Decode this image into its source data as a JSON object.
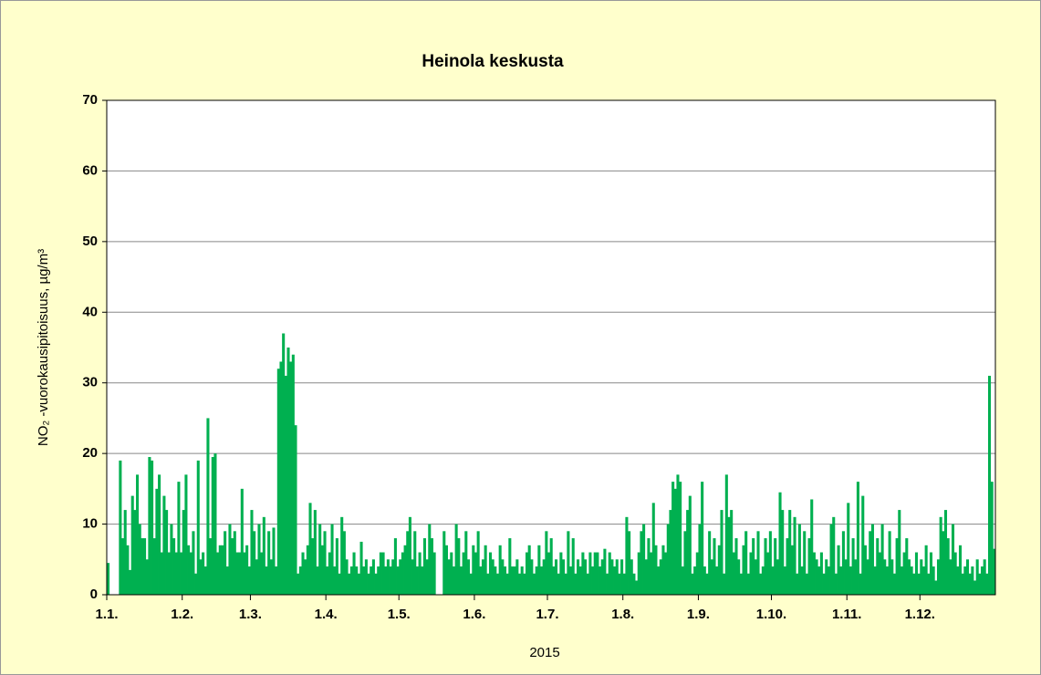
{
  "chart_data": {
    "type": "bar",
    "title": "Heinola keskusta",
    "x_label": "2015",
    "y_label": "NO₂ -vuorokausipitoisuus, µg/m³",
    "color": "#00b050",
    "grid": true,
    "ylim": [
      0,
      70
    ],
    "yticks": [
      0,
      10,
      20,
      30,
      40,
      50,
      60,
      70
    ],
    "categories": [
      "1.1.",
      null,
      null,
      null,
      null,
      null,
      null,
      null,
      null,
      null,
      null,
      null,
      null,
      null,
      null,
      null,
      null,
      null,
      null,
      null,
      null,
      null,
      null,
      null,
      null,
      null,
      null,
      null,
      null,
      null,
      null,
      "1.2.",
      null,
      null,
      null,
      null,
      null,
      null,
      null,
      null,
      null,
      null,
      null,
      null,
      null,
      null,
      null,
      null,
      null,
      null,
      null,
      null,
      null,
      null,
      null,
      null,
      null,
      null,
      null,
      "1.3.",
      null,
      null,
      null,
      null,
      null,
      null,
      null,
      null,
      null,
      null,
      null,
      null,
      null,
      null,
      null,
      null,
      null,
      null,
      null,
      null,
      null,
      null,
      null,
      null,
      null,
      null,
      null,
      null,
      null,
      null,
      "1.4.",
      null,
      null,
      null,
      null,
      null,
      null,
      null,
      null,
      null,
      null,
      null,
      null,
      null,
      null,
      null,
      null,
      null,
      null,
      null,
      null,
      null,
      null,
      null,
      null,
      null,
      null,
      null,
      null,
      null,
      "1.5.",
      null,
      null,
      null,
      null,
      null,
      null,
      null,
      null,
      null,
      null,
      null,
      null,
      null,
      null,
      null,
      null,
      null,
      null,
      null,
      null,
      null,
      null,
      null,
      null,
      null,
      null,
      null,
      null,
      null,
      null,
      "1.6.",
      null,
      null,
      null,
      null,
      null,
      null,
      null,
      null,
      null,
      null,
      null,
      null,
      null,
      null,
      null,
      null,
      null,
      null,
      null,
      null,
      null,
      null,
      null,
      null,
      null,
      null,
      null,
      null,
      null,
      "1.7.",
      null,
      null,
      null,
      null,
      null,
      null,
      null,
      null,
      null,
      null,
      null,
      null,
      null,
      null,
      null,
      null,
      null,
      null,
      null,
      null,
      null,
      null,
      null,
      null,
      null,
      null,
      null,
      null,
      null,
      null,
      "1.8.",
      null,
      null,
      null,
      null,
      null,
      null,
      null,
      null,
      null,
      null,
      null,
      null,
      null,
      null,
      null,
      null,
      null,
      null,
      null,
      null,
      null,
      null,
      null,
      null,
      null,
      null,
      null,
      null,
      null,
      null,
      "1.9.",
      null,
      null,
      null,
      null,
      null,
      null,
      null,
      null,
      null,
      null,
      null,
      null,
      null,
      null,
      null,
      null,
      null,
      null,
      null,
      null,
      null,
      null,
      null,
      null,
      null,
      null,
      null,
      null,
      null,
      "1.10.",
      null,
      null,
      null,
      null,
      null,
      null,
      null,
      null,
      null,
      null,
      null,
      null,
      null,
      null,
      null,
      null,
      null,
      null,
      null,
      null,
      null,
      null,
      null,
      null,
      null,
      null,
      null,
      null,
      null,
      null,
      "1.11.",
      null,
      null,
      null,
      null,
      null,
      null,
      null,
      null,
      null,
      null,
      null,
      null,
      null,
      null,
      null,
      null,
      null,
      null,
      null,
      null,
      null,
      null,
      null,
      null,
      null,
      null,
      null,
      null,
      null,
      "1.12.",
      null,
      null,
      null,
      null,
      null,
      null,
      null,
      null,
      null,
      null,
      null,
      null,
      null,
      null,
      null,
      null,
      null,
      null,
      null,
      null,
      null,
      null,
      null,
      null,
      null,
      null,
      null,
      null,
      null,
      null
    ],
    "values": [
      4.5,
      null,
      null,
      null,
      null,
      19,
      8,
      12,
      7,
      3.5,
      14,
      12,
      17,
      10,
      8,
      8,
      5,
      19.5,
      19,
      8,
      15,
      17,
      6,
      14,
      12,
      6,
      10,
      8,
      6,
      16,
      6,
      12,
      17,
      7,
      6,
      9,
      3,
      19,
      5,
      6,
      4,
      25,
      8,
      19.5,
      20,
      6,
      7,
      7,
      9,
      4,
      10,
      8,
      9,
      6,
      6,
      15,
      6,
      7,
      4,
      12,
      9,
      5,
      10,
      6,
      11,
      4,
      9,
      5,
      9.5,
      4,
      32,
      33,
      37,
      31,
      35,
      33,
      34,
      24,
      3,
      4,
      6,
      5,
      7,
      13,
      8,
      12,
      4,
      10,
      7,
      9,
      4,
      6,
      10,
      4,
      8,
      3,
      11,
      9,
      5,
      3,
      4,
      6,
      4,
      3,
      7.5,
      4,
      5,
      3,
      4,
      5,
      3,
      4,
      6,
      6,
      4,
      5,
      4,
      5,
      8,
      4,
      5,
      6,
      7,
      9,
      11,
      5,
      9,
      4,
      6,
      4,
      8,
      5,
      10,
      8,
      6,
      null,
      null,
      null,
      9,
      7,
      5,
      6,
      4,
      10,
      8,
      4,
      6,
      9,
      5,
      3,
      7,
      6,
      9,
      4,
      5,
      7,
      3,
      6,
      5,
      4,
      3,
      7,
      5,
      4,
      3,
      8,
      4,
      4,
      5,
      3,
      4,
      3,
      6,
      7,
      5,
      3,
      4,
      7,
      4,
      5,
      9,
      6,
      8,
      4,
      5,
      3,
      6,
      5,
      3,
      9,
      4,
      8,
      3,
      5,
      4,
      6,
      5,
      3,
      6,
      4,
      6,
      6,
      4,
      5,
      6.5,
      3,
      6,
      5,
      4,
      5,
      3,
      5,
      3,
      11,
      9,
      5,
      3,
      2,
      6,
      9,
      10,
      5,
      8,
      6,
      13,
      7,
      4,
      5,
      7,
      6,
      10,
      12,
      16,
      15,
      17,
      16,
      4,
      9,
      12,
      14,
      3,
      4,
      6,
      10,
      16,
      4,
      3,
      9,
      5,
      8,
      4,
      7,
      12,
      3,
      17,
      11,
      12,
      6,
      8,
      5,
      3,
      7,
      9,
      3,
      6,
      8,
      5,
      9,
      3,
      4,
      8,
      6,
      9,
      4,
      8,
      5,
      14.5,
      12,
      4,
      8,
      12,
      7,
      11,
      3,
      10,
      4,
      9,
      3,
      8,
      13.5,
      6,
      5,
      4,
      6,
      3,
      5,
      4,
      10,
      11,
      3,
      7,
      4,
      9,
      5,
      13,
      4,
      8,
      5,
      16,
      3,
      14,
      7,
      5,
      9,
      10,
      4,
      8,
      6,
      10,
      5,
      4,
      9,
      5,
      3,
      8,
      12,
      4,
      6,
      8,
      5,
      4,
      3,
      6,
      3,
      5,
      4,
      7,
      3,
      6,
      4,
      2,
      5,
      11,
      9,
      12,
      8,
      5,
      10,
      6,
      4,
      7,
      3,
      4,
      5,
      3,
      4,
      2,
      5,
      3,
      4,
      5,
      3,
      31,
      16,
      6.5
    ]
  }
}
